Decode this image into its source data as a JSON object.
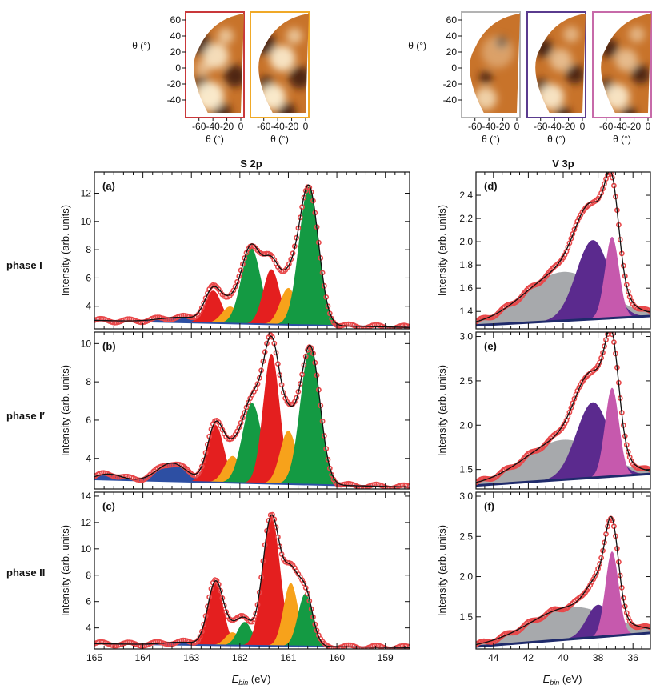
{
  "colors": {
    "s_red": "#e41f1f",
    "s_orange": "#f7a21b",
    "s_green": "#149a43",
    "s_blue": "#2d4fa3",
    "v_gray": "#a7a9ac",
    "v_purple": "#5b2a8e",
    "v_pink": "#c659ad",
    "v_navy": "#1f2a6b",
    "data_red": "#e8484a",
    "fit": "#111111",
    "map_border_1": "#c9383a",
    "map_border_2": "#f0a928",
    "map_border_3": "#b3b3b3",
    "map_border_4": "#5a3b8e",
    "map_border_5": "#c76aa9"
  },
  "titles": {
    "s2p": "S 2p",
    "v3p": "V 3p"
  },
  "rows": [
    {
      "label": "phase I"
    },
    {
      "label": "phase I′"
    },
    {
      "label": "phase II"
    }
  ],
  "axis_labels": {
    "ylabel": "Intensity (arb. units)",
    "xlabel_main": "E",
    "xlabel_sub": "bin",
    "xlabel_unit": " (eV)"
  },
  "maps": {
    "ylabel": "θ (°)",
    "xlabel": "θ (°)",
    "yticks": [
      "60",
      "40",
      "20",
      "0",
      "-20",
      "-40"
    ],
    "xticks": [
      "-60",
      "-40",
      "-20",
      "0"
    ]
  },
  "chart_data": [
    {
      "type": "area",
      "panel": "(a)",
      "title": "S 2p",
      "row": "phase I",
      "xlabel": "E_bin (eV)",
      "ylabel": "Intensity (arb. units)",
      "xlim": [
        165,
        158.5
      ],
      "ylim": [
        2.4,
        13.5
      ],
      "xticks": [
        165,
        164,
        163,
        162,
        161,
        160,
        159
      ],
      "yticks": [
        4,
        6,
        8,
        10,
        12
      ],
      "background": {
        "at_x_max": 3.0,
        "at_x_min": 2.5
      },
      "components": [
        {
          "color": "s_blue",
          "center": 163.2,
          "width": 0.45,
          "height": 0.35
        },
        {
          "color": "s_red",
          "center": 162.55,
          "width": 0.17,
          "height": 2.3
        },
        {
          "color": "s_orange",
          "center": 162.2,
          "width": 0.17,
          "height": 1.2
        },
        {
          "color": "s_green",
          "center": 161.77,
          "width": 0.2,
          "height": 5.4
        },
        {
          "color": "s_red",
          "center": 161.35,
          "width": 0.17,
          "height": 3.9
        },
        {
          "color": "s_orange",
          "center": 161.0,
          "width": 0.17,
          "height": 2.6
        },
        {
          "color": "s_green",
          "center": 160.58,
          "width": 0.2,
          "height": 9.8
        }
      ]
    },
    {
      "type": "area",
      "panel": "(b)",
      "title": "S 2p",
      "row": "phase I′",
      "xlabel": "E_bin (eV)",
      "ylabel": "Intensity (arb. units)",
      "xlim": [
        165,
        158.5
      ],
      "ylim": [
        2.4,
        10.6
      ],
      "xticks": [
        165,
        164,
        163,
        162,
        161,
        160,
        159
      ],
      "yticks": [
        4,
        6,
        8,
        10
      ],
      "background": {
        "at_x_max": 2.9,
        "at_x_min": 2.5
      },
      "components": [
        {
          "color": "s_blue",
          "center": 164.7,
          "width": 0.25,
          "height": 0.3
        },
        {
          "color": "s_blue",
          "center": 163.4,
          "width": 0.3,
          "height": 0.95
        },
        {
          "color": "s_red",
          "center": 162.5,
          "width": 0.17,
          "height": 3.0
        },
        {
          "color": "s_orange",
          "center": 162.15,
          "width": 0.17,
          "height": 1.4
        },
        {
          "color": "s_green",
          "center": 161.75,
          "width": 0.2,
          "height": 4.2
        },
        {
          "color": "s_red",
          "center": 161.35,
          "width": 0.17,
          "height": 6.8
        },
        {
          "color": "s_orange",
          "center": 161.0,
          "width": 0.17,
          "height": 2.8
        },
        {
          "color": "s_green",
          "center": 160.55,
          "width": 0.2,
          "height": 7.2
        }
      ]
    },
    {
      "type": "area",
      "panel": "(c)",
      "title": "S 2p",
      "row": "phase II",
      "xlabel": "E_bin (eV)",
      "ylabel": "Intensity (arb. units)",
      "xlim": [
        165,
        158.5
      ],
      "ylim": [
        2.4,
        14.3
      ],
      "xticks": [
        165,
        164,
        163,
        162,
        161,
        160,
        159
      ],
      "yticks": [
        4,
        6,
        8,
        10,
        12,
        14
      ],
      "background": {
        "at_x_max": 2.8,
        "at_x_min": 2.5
      },
      "components": [
        {
          "color": "s_blue",
          "center": 163.2,
          "width": 0.35,
          "height": 0.2
        },
        {
          "color": "s_red",
          "center": 162.5,
          "width": 0.16,
          "height": 4.8
        },
        {
          "color": "s_orange",
          "center": 162.15,
          "width": 0.15,
          "height": 1.0
        },
        {
          "color": "s_green",
          "center": 161.9,
          "width": 0.15,
          "height": 1.8
        },
        {
          "color": "s_red",
          "center": 161.35,
          "width": 0.18,
          "height": 9.8
        },
        {
          "color": "s_orange",
          "center": 160.95,
          "width": 0.15,
          "height": 4.8
        },
        {
          "color": "s_green",
          "center": 160.65,
          "width": 0.15,
          "height": 4.0
        }
      ]
    },
    {
      "type": "area",
      "panel": "(d)",
      "title": "V 3p",
      "row": "phase I",
      "xlabel": "E_bin (eV)",
      "ylabel": "Intensity (arb. units)",
      "xlim": [
        45,
        35
      ],
      "ylim": [
        1.25,
        2.6
      ],
      "xticks": [
        44,
        42,
        40,
        38,
        36
      ],
      "yticks": [
        1.4,
        1.6,
        1.8,
        2.0,
        2.2,
        2.4
      ],
      "background": {
        "at_x_max": 1.28,
        "at_x_min": 1.36
      },
      "components": [
        {
          "color": "v_gray",
          "center": 40.0,
          "width": 2.2,
          "height": 0.42
        },
        {
          "color": "v_purple",
          "center": 38.3,
          "width": 0.95,
          "height": 0.68
        },
        {
          "color": "v_pink",
          "center": 37.2,
          "width": 0.4,
          "height": 0.7
        }
      ]
    },
    {
      "type": "area",
      "panel": "(e)",
      "title": "V 3p",
      "row": "phase I′",
      "xlabel": "E_bin (eV)",
      "ylabel": "Intensity (arb. units)",
      "xlim": [
        45,
        35
      ],
      "ylim": [
        1.28,
        3.05
      ],
      "xticks": [
        44,
        42,
        40,
        38,
        36
      ],
      "yticks": [
        1.5,
        2.0,
        2.5,
        3.0
      ],
      "background": {
        "at_x_max": 1.32,
        "at_x_min": 1.45
      },
      "components": [
        {
          "color": "v_gray",
          "center": 40.0,
          "width": 2.2,
          "height": 0.45
        },
        {
          "color": "v_purple",
          "center": 38.3,
          "width": 0.95,
          "height": 0.85
        },
        {
          "color": "v_pink",
          "center": 37.2,
          "width": 0.4,
          "height": 1.0
        }
      ]
    },
    {
      "type": "area",
      "panel": "(f)",
      "title": "V 3p",
      "row": "phase II",
      "xlabel": "E_bin (eV)",
      "ylabel": "Intensity (arb. units)",
      "xlim": [
        45,
        35
      ],
      "ylim": [
        1.1,
        3.05
      ],
      "xticks": [
        44,
        42,
        40,
        38,
        36
      ],
      "yticks": [
        1.5,
        2.0,
        2.5,
        3.0
      ],
      "background": {
        "at_x_max": 1.13,
        "at_x_min": 1.3
      },
      "components": [
        {
          "color": "v_gray",
          "center": 39.6,
          "width": 2.3,
          "height": 0.4
        },
        {
          "color": "v_purple",
          "center": 38.0,
          "width": 0.65,
          "height": 0.4
        },
        {
          "color": "v_pink",
          "center": 37.2,
          "width": 0.38,
          "height": 1.05
        }
      ]
    }
  ]
}
